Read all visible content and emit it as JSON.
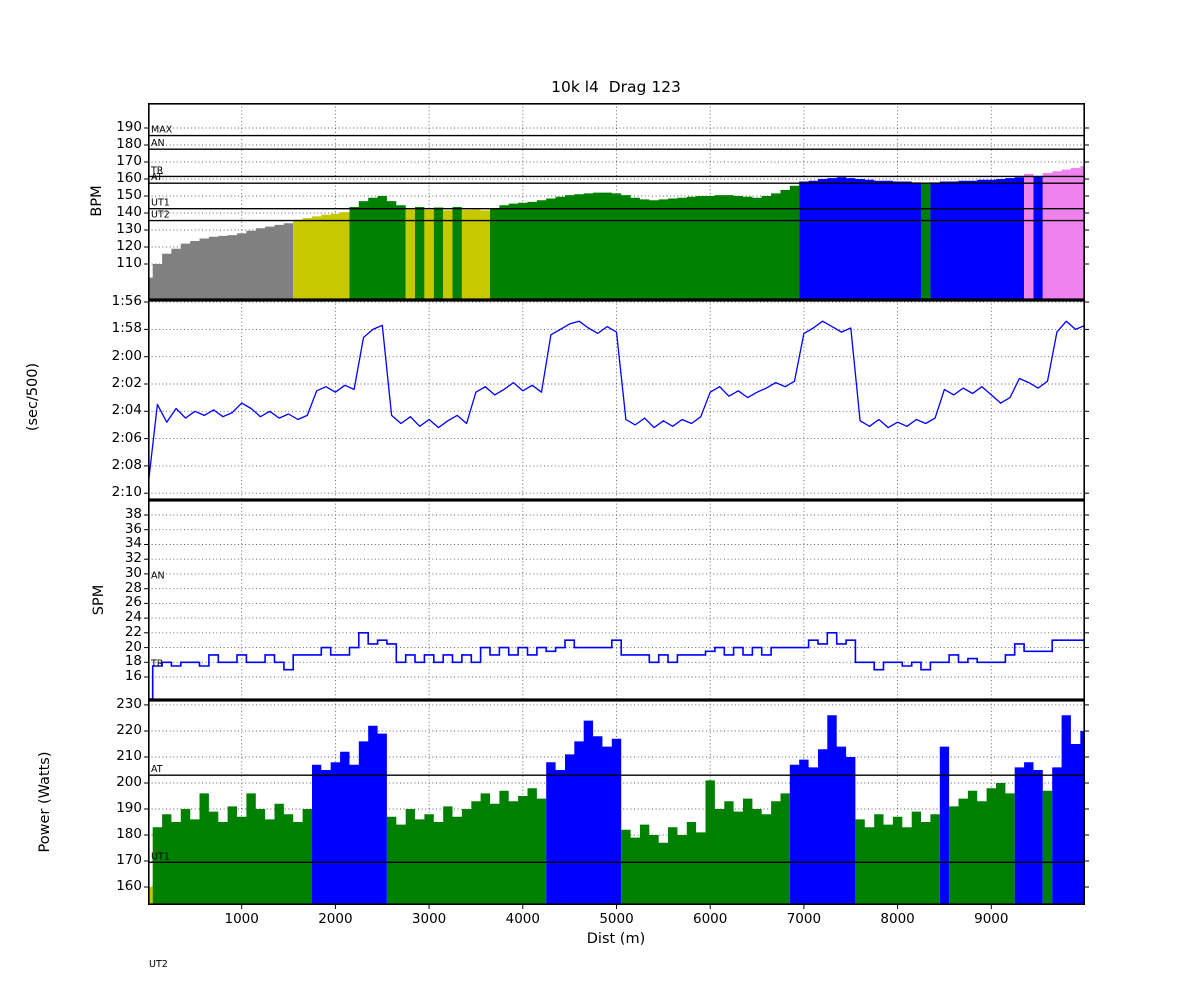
{
  "title": "10k l4  Drag 123",
  "figure": {
    "stray_zone_label": "UT2"
  },
  "chart_data": {
    "type": "line",
    "title": "10k l4  Drag 123",
    "xlabel": "Dist (m)",
    "xlim": [
      0,
      10000
    ],
    "xticks": [
      1000,
      2000,
      3000,
      4000,
      5000,
      6000,
      7000,
      8000,
      9000
    ],
    "x_sample_step_m": 100,
    "grid": "dotted",
    "panels": [
      {
        "name": "heart-rate",
        "kind": "zoned-bars",
        "ylabel": "BPM",
        "ylim_top": 204.7,
        "ylim_bottom": 88.8,
        "ytick_values": [
          190,
          180,
          170,
          160,
          150,
          140,
          130,
          120,
          110
        ],
        "ytick_labels": [
          "190",
          "180",
          "170",
          "160",
          "150",
          "140",
          "130",
          "120",
          "110"
        ],
        "zone_lines": [
          {
            "label": "MAX",
            "value": 185.5,
            "line": true
          },
          {
            "label": "AN",
            "value": 177.5,
            "line": true
          },
          {
            "label": "TR",
            "value": 161.5,
            "line": true
          },
          {
            "label": "AT",
            "value": 157.5,
            "line": true
          },
          {
            "label": "UT1",
            "value": 142.5,
            "line": true
          },
          {
            "label": "UT2",
            "value": 135.5,
            "line": true
          }
        ],
        "zone_colors": [
          {
            "upto": 135.5,
            "color": "#808080"
          },
          {
            "upto": 142.5,
            "color": "#c8c800"
          },
          {
            "upto": 157.5,
            "color": "#008000"
          },
          {
            "upto": 161.5,
            "color": "#0000ff"
          },
          {
            "upto": 1000,
            "color": "#ee82ee"
          }
        ],
        "values": [
          102,
          110,
          116,
          119,
          122,
          123.5,
          125,
          126,
          126.5,
          127,
          128,
          129.5,
          131,
          132,
          133,
          134,
          136,
          137,
          138,
          139,
          139.5,
          140.5,
          143.5,
          147,
          149,
          150,
          147,
          144.5,
          142,
          143.5,
          141.8,
          143.2,
          141.5,
          143.5,
          141.8,
          142,
          141.5,
          142.8,
          144.5,
          145.5,
          146,
          146.5,
          147.5,
          148.5,
          149.5,
          150.5,
          151,
          151.5,
          152,
          152,
          151.5,
          150.5,
          149,
          148,
          147.5,
          148,
          148.5,
          149,
          149.5,
          150,
          150,
          150.5,
          150.5,
          150,
          149.5,
          149,
          150,
          151.5,
          153.5,
          156,
          158.5,
          159,
          160,
          160.5,
          161,
          160.5,
          160,
          159.5,
          159,
          159,
          158.5,
          158.5,
          158,
          157.2,
          158,
          158.5,
          158.5,
          159,
          159,
          159.5,
          159.5,
          160,
          160.5,
          161,
          163,
          161.3,
          163.5,
          164.5,
          165.5,
          166.5,
          167.5
        ]
      },
      {
        "name": "pace",
        "kind": "line",
        "ylabel": "(sec/500)",
        "line_color": "#0000ff",
        "ylim_top": 115.85,
        "ylim_bottom": 130.5,
        "ytick_values": [
          116,
          118,
          120,
          122,
          124,
          126,
          128,
          130
        ],
        "ytick_labels": [
          "1:56",
          "1:58",
          "2:00",
          "2:02",
          "2:04",
          "2:06",
          "2:08",
          "2:10"
        ],
        "zone_lines": [],
        "values": [
          129.5,
          123.5,
          124.8,
          123.8,
          124.5,
          124,
          124.3,
          123.9,
          124.4,
          124.1,
          123.4,
          123.8,
          124.4,
          124,
          124.5,
          124.2,
          124.6,
          124.3,
          122.5,
          122.2,
          122.6,
          122.1,
          122.4,
          118.6,
          118,
          117.7,
          124.3,
          124.9,
          124.4,
          125.1,
          124.6,
          125.2,
          124.7,
          124.3,
          124.9,
          122.6,
          122.2,
          122.8,
          122.4,
          121.9,
          122.5,
          122.1,
          122.6,
          118.4,
          118,
          117.6,
          117.4,
          117.9,
          118.3,
          117.8,
          118.2,
          124.6,
          125,
          124.5,
          125.2,
          124.7,
          125.1,
          124.6,
          124.9,
          124.4,
          122.6,
          122.2,
          122.9,
          122.5,
          123,
          122.6,
          122.3,
          121.9,
          122.2,
          121.8,
          118.3,
          117.9,
          117.4,
          117.8,
          118.2,
          117.9,
          124.7,
          125.1,
          124.6,
          125.2,
          124.8,
          125.1,
          124.6,
          124.9,
          124.5,
          122.4,
          122.8,
          122.3,
          122.7,
          122.2,
          122.8,
          123.4,
          123,
          121.6,
          121.9,
          122.3,
          121.8,
          118.2,
          117.4,
          118,
          117.7
        ]
      },
      {
        "name": "stroke-rate",
        "kind": "step-line",
        "ylabel": "SPM",
        "line_color": "#0000ff",
        "ylim_top": 40.04,
        "ylim_bottom": 12.88,
        "ytick_values": [
          38,
          36,
          34,
          32,
          30,
          28,
          26,
          24,
          22,
          20,
          18,
          16
        ],
        "ytick_labels": [
          "38",
          "36",
          "34",
          "32",
          "30",
          "28",
          "26",
          "24",
          "22",
          "20",
          "18",
          "16"
        ],
        "zone_lines": [
          {
            "label": "AN",
            "value": 29,
            "line": false
          },
          {
            "label": "TR",
            "value": 17,
            "line": false
          }
        ],
        "values": [
          13,
          17.5,
          18,
          17.5,
          18,
          18,
          17.5,
          19,
          18,
          18,
          19,
          18,
          18,
          19,
          18,
          17,
          19,
          19,
          19,
          20,
          19,
          19,
          20,
          22,
          20.5,
          21,
          20.5,
          18,
          19,
          18,
          19,
          18,
          19,
          18,
          19,
          18,
          20,
          19,
          20,
          19,
          20,
          19,
          20,
          19.5,
          20,
          21,
          20,
          20,
          20,
          20,
          21,
          19,
          19,
          19,
          18,
          19,
          18,
          19,
          19,
          19,
          19.5,
          20,
          19,
          20,
          19,
          20,
          19,
          20,
          20,
          20,
          20,
          21,
          20.5,
          22,
          20.5,
          21,
          18,
          18,
          17,
          18,
          18,
          17.5,
          18,
          17,
          18,
          18,
          19,
          18,
          18.5,
          18,
          18,
          18,
          19,
          20.5,
          19.5,
          19.5,
          19.5,
          21,
          21,
          21,
          21
        ]
      },
      {
        "name": "power",
        "kind": "zoned-bars",
        "ylabel": "Power (Watts)",
        "ylim_top": 231.9,
        "ylim_bottom": 153.1,
        "ytick_values": [
          230,
          220,
          210,
          200,
          190,
          180,
          170,
          160
        ],
        "ytick_labels": [
          "230",
          "220",
          "210",
          "200",
          "190",
          "180",
          "170",
          "160"
        ],
        "zone_lines": [
          {
            "label": "AT",
            "value": 203,
            "line": true
          },
          {
            "label": "UT1",
            "value": 169.5,
            "line": true
          }
        ],
        "zone_colors": [
          {
            "upto": 169.5,
            "color": "#c8c800"
          },
          {
            "upto": 203,
            "color": "#008000"
          },
          {
            "upto": 1000,
            "color": "#0000ff"
          }
        ],
        "values": [
          160,
          183,
          188,
          185,
          190,
          186,
          196,
          189,
          185,
          191,
          187,
          196,
          190,
          186,
          192,
          188,
          185,
          190,
          207,
          205,
          208,
          212,
          207,
          216,
          222,
          219,
          187,
          184,
          190,
          186,
          188,
          185,
          191,
          187,
          190,
          193,
          196,
          192,
          197,
          193,
          195,
          198,
          194,
          208,
          205,
          211,
          216,
          224,
          218,
          214,
          217,
          182,
          179,
          184,
          180,
          177,
          183,
          180,
          185,
          181,
          201,
          190,
          193,
          189,
          194,
          190,
          188,
          193,
          196,
          207,
          209,
          206,
          213,
          226,
          214,
          210,
          186,
          183,
          188,
          184,
          187,
          183,
          189,
          185,
          188,
          214,
          191,
          194,
          197,
          193,
          198,
          200,
          196,
          206,
          208,
          205,
          197,
          206,
          226,
          215,
          220
        ]
      }
    ]
  }
}
